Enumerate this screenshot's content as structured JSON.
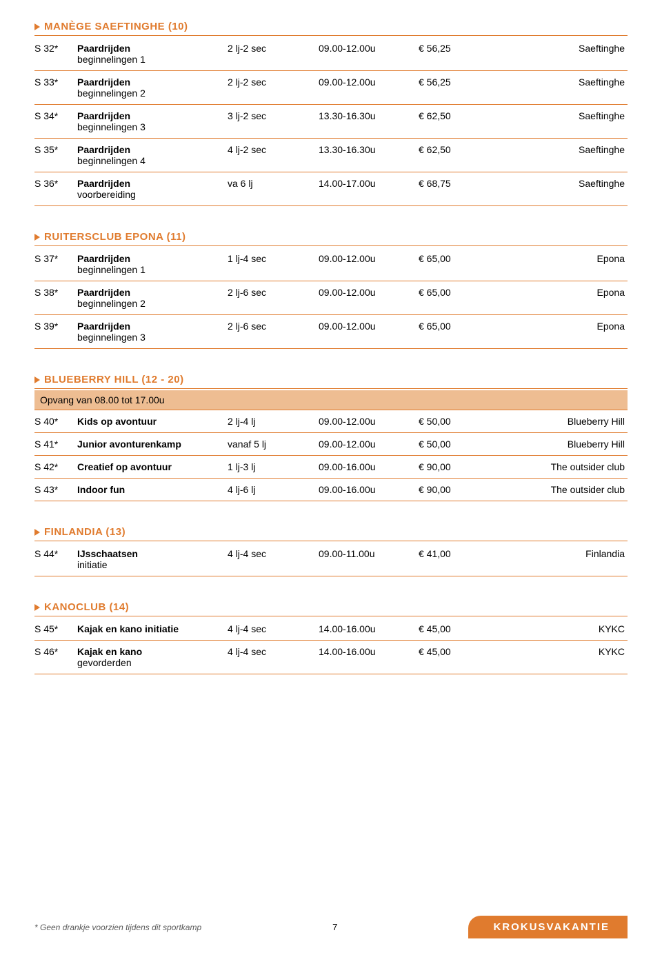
{
  "colors": {
    "accent": "#e07b2e",
    "noteBg": "#eebd92",
    "text": "#000000",
    "bg": "#ffffff",
    "footnote": "#5a5a5a"
  },
  "footnote": "* Geen drankje voorzien tijdens dit sportkamp",
  "pageNumber": "7",
  "badge": "KROKUSVAKANTIE",
  "sections": [
    {
      "title": "MANÈGE SAEFTINGHE (10)",
      "rows": [
        {
          "code": "S 32*",
          "name": "Paardrijden",
          "sub": "beginnelingen 1",
          "age": "2 lj-2 sec",
          "time": "09.00-12.00u",
          "price": "€ 56,25",
          "loc": "Saeftinghe"
        },
        {
          "code": "S 33*",
          "name": "Paardrijden",
          "sub": "beginnelingen 2",
          "age": "2 lj-2 sec",
          "time": "09.00-12.00u",
          "price": "€ 56,25",
          "loc": "Saeftinghe"
        },
        {
          "code": "S 34*",
          "name": "Paardrijden",
          "sub": "beginnelingen 3",
          "age": "3 lj-2 sec",
          "time": "13.30-16.30u",
          "price": "€ 62,50",
          "loc": "Saeftinghe"
        },
        {
          "code": "S 35*",
          "name": "Paardrijden",
          "sub": "beginnelingen 4",
          "age": "4 lj-2 sec",
          "time": "13.30-16.30u",
          "price": "€ 62,50",
          "loc": "Saeftinghe"
        },
        {
          "code": "S 36*",
          "name": "Paardrijden",
          "sub": "voorbereiding",
          "age": "va 6 lj",
          "time": "14.00-17.00u",
          "price": "€ 68,75",
          "loc": "Saeftinghe"
        }
      ]
    },
    {
      "title": "RUITERSCLUB EPONA (11)",
      "rows": [
        {
          "code": "S 37*",
          "name": "Paardrijden",
          "sub": "beginnelingen 1",
          "age": "1 lj-4 sec",
          "time": "09.00-12.00u",
          "price": "€ 65,00",
          "loc": "Epona"
        },
        {
          "code": "S 38*",
          "name": "Paardrijden",
          "sub": "beginnelingen 2",
          "age": "2 lj-6 sec",
          "time": "09.00-12.00u",
          "price": "€ 65,00",
          "loc": "Epona"
        },
        {
          "code": "S 39*",
          "name": "Paardrijden",
          "sub": "beginnelingen 3",
          "age": "2 lj-6 sec",
          "time": "09.00-12.00u",
          "price": "€ 65,00",
          "loc": "Epona"
        }
      ]
    },
    {
      "title": "BLUEBERRY HILL (12 - 20)",
      "note": "Opvang van 08.00 tot 17.00u",
      "rows": [
        {
          "code": "S 40*",
          "name": "Kids op avontuur",
          "sub": "",
          "age": "2 lj-4 lj",
          "time": "09.00-12.00u",
          "price": "€ 50,00",
          "loc": "Blueberry Hill"
        },
        {
          "code": "S 41*",
          "name": "Junior avonturenkamp",
          "sub": "",
          "age": "vanaf 5 lj",
          "time": "09.00-12.00u",
          "price": "€ 50,00",
          "loc": "Blueberry Hill"
        },
        {
          "code": "S 42*",
          "name": "Creatief op avontuur",
          "sub": "",
          "age": "1 lj-3 lj",
          "time": "09.00-16.00u",
          "price": "€ 90,00",
          "loc": "The outsider club"
        },
        {
          "code": "S 43*",
          "name": "Indoor fun",
          "sub": "",
          "age": "4 lj-6 lj",
          "time": "09.00-16.00u",
          "price": "€ 90,00",
          "loc": "The outsider club"
        }
      ]
    },
    {
      "title": "FINLANDIA (13)",
      "rows": [
        {
          "code": "S 44*",
          "name": "IJsschaatsen",
          "sub": "initiatie",
          "age": "4 lj-4 sec",
          "time": "09.00-11.00u",
          "price": "€ 41,00",
          "loc": "Finlandia"
        }
      ]
    },
    {
      "title": "KANOCLUB (14)",
      "rows": [
        {
          "code": "S 45*",
          "name": "Kajak en kano initiatie",
          "sub": "",
          "age": "4 lj-4 sec",
          "time": "14.00-16.00u",
          "price": "€ 45,00",
          "loc": "KYKC"
        },
        {
          "code": "S 46*",
          "name": "Kajak en kano",
          "sub": "gevorderden",
          "age": "4 lj-4 sec",
          "time": "14.00-16.00u",
          "price": "€ 45,00",
          "loc": "KYKC"
        }
      ]
    }
  ]
}
